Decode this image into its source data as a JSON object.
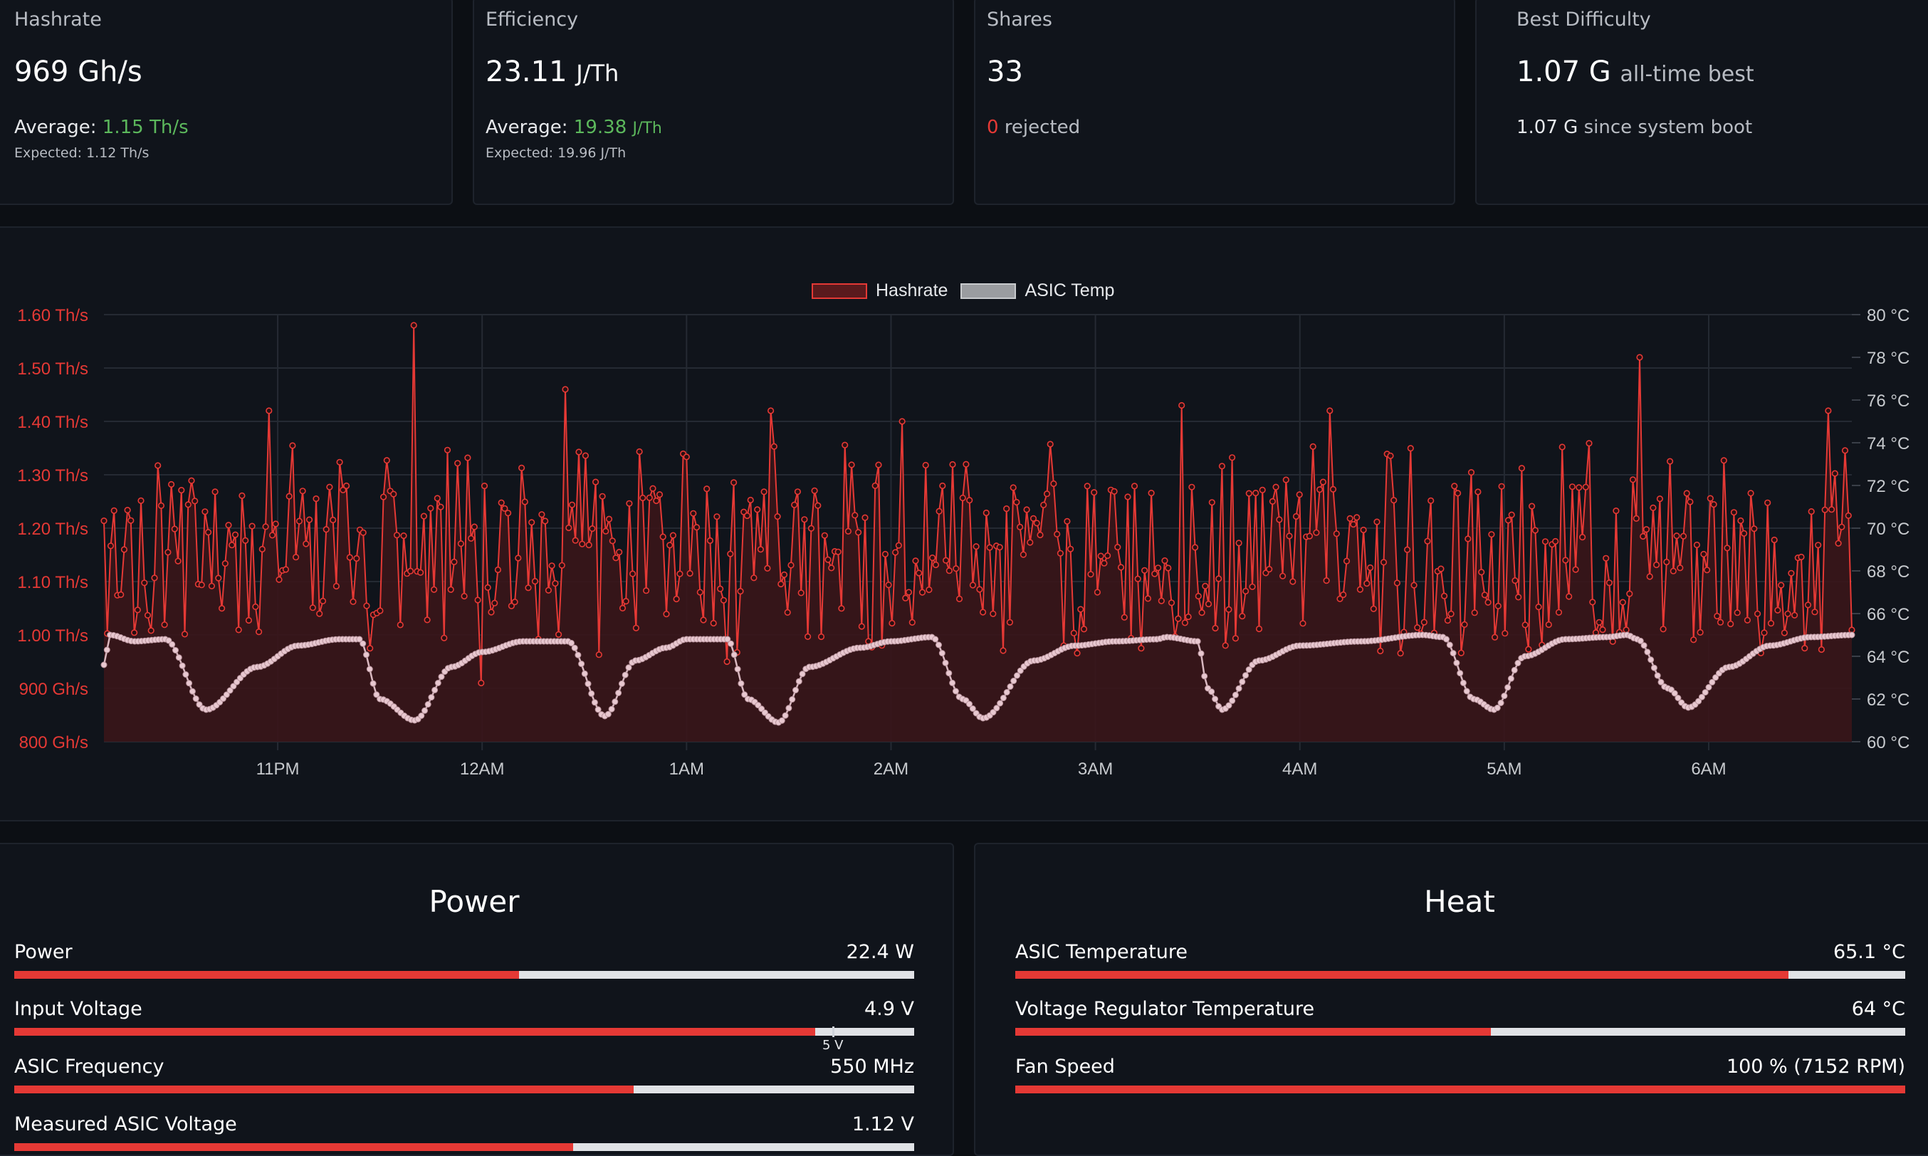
{
  "stats": {
    "hashrate": {
      "title": "Hashrate",
      "value": "969 Gh/s",
      "avg_label": "Average:",
      "avg_value": "1.15 Th/s",
      "expected": "Expected: 1.12 Th/s"
    },
    "efficiency": {
      "title": "Efficiency",
      "value": "23.11",
      "unit": "J/Th",
      "avg_label": "Average:",
      "avg_value": "19.38",
      "avg_unit": "J/Th",
      "expected": "Expected: 19.96 J/Th"
    },
    "shares": {
      "title": "Shares",
      "value": "33",
      "rejected_count": "0",
      "rejected_label": "rejected"
    },
    "best_difficulty": {
      "title": "Best Difficulty",
      "value": "1.07 G",
      "value_suffix": "all-time best",
      "since_boot_value": "1.07 G",
      "since_boot_label": "since system boot"
    }
  },
  "chart_data": {
    "type": "line",
    "legend": [
      "Hashrate",
      "ASIC Temp"
    ],
    "legend_position": "top-center",
    "x_tick_labels": [
      "11PM",
      "12AM",
      "1AM",
      "2AM",
      "3AM",
      "4AM",
      "5AM",
      "6AM"
    ],
    "x_tick_hours": [
      23,
      24,
      25,
      26,
      27,
      28,
      29,
      30
    ],
    "x_range_hours": [
      22.15,
      30.7
    ],
    "y_left": {
      "unit": "Th/s",
      "range": [
        0.8,
        1.6
      ],
      "tick_labels": [
        "800 Gh/s",
        "900 Gh/s",
        "1.00 Th/s",
        "1.10 Th/s",
        "1.20 Th/s",
        "1.30 Th/s",
        "1.40 Th/s",
        "1.50 Th/s",
        "1.60 Th/s"
      ]
    },
    "y_right": {
      "unit": "°C",
      "range": [
        60,
        80
      ],
      "tick_labels": [
        "60 °C",
        "62 °C",
        "64 °C",
        "66 °C",
        "68 °C",
        "70 °C",
        "72 °C",
        "74 °C",
        "76 °C",
        "78 °C",
        "80 °C"
      ]
    },
    "grid": true,
    "series": [
      {
        "name": "Hashrate",
        "y_axis": "left",
        "color": "#e53935",
        "x_range": [
          22.15,
          30.7
        ],
        "point_count": 520,
        "typical_range": [
          1.0,
          1.3
        ],
        "peaks": [
          {
            "x": 22.96,
            "y": 1.42
          },
          {
            "x": 23.67,
            "y": 1.58
          },
          {
            "x": 24.41,
            "y": 1.46
          },
          {
            "x": 25.42,
            "y": 1.42
          },
          {
            "x": 26.06,
            "y": 1.4
          },
          {
            "x": 27.42,
            "y": 1.43
          },
          {
            "x": 28.14,
            "y": 1.42
          },
          {
            "x": 29.67,
            "y": 1.52
          },
          {
            "x": 30.58,
            "y": 1.42
          }
        ],
        "troughs": [
          {
            "x": 24.0,
            "y": 0.91
          },
          {
            "x": 25.2,
            "y": 0.95
          },
          {
            "x": 26.85,
            "y": 0.98
          },
          {
            "x": 28.4,
            "y": 0.97
          }
        ]
      },
      {
        "name": "ASIC Temp",
        "y_axis": "right",
        "color": "#e8c8d0",
        "keypoints": [
          [
            22.15,
            63.6
          ],
          [
            22.18,
            65.0
          ],
          [
            22.3,
            64.7
          ],
          [
            22.45,
            64.8
          ],
          [
            22.65,
            61.5
          ],
          [
            22.9,
            63.5
          ],
          [
            23.1,
            64.5
          ],
          [
            23.3,
            64.8
          ],
          [
            23.4,
            64.8
          ],
          [
            23.5,
            62.0
          ],
          [
            23.67,
            61.0
          ],
          [
            23.85,
            63.5
          ],
          [
            24.0,
            64.2
          ],
          [
            24.2,
            64.7
          ],
          [
            24.42,
            64.7
          ],
          [
            24.6,
            61.2
          ],
          [
            24.75,
            63.8
          ],
          [
            24.9,
            64.4
          ],
          [
            25.0,
            64.8
          ],
          [
            25.2,
            64.8
          ],
          [
            25.3,
            62.0
          ],
          [
            25.45,
            60.9
          ],
          [
            25.6,
            63.5
          ],
          [
            25.85,
            64.4
          ],
          [
            26.0,
            64.7
          ],
          [
            26.2,
            64.9
          ],
          [
            26.35,
            62.0
          ],
          [
            26.45,
            61.1
          ],
          [
            26.7,
            63.8
          ],
          [
            26.9,
            64.5
          ],
          [
            27.1,
            64.7
          ],
          [
            27.3,
            64.8
          ],
          [
            27.3,
            64.8
          ],
          [
            27.35,
            64.9
          ],
          [
            27.5,
            64.7
          ],
          [
            27.55,
            62.5
          ],
          [
            27.62,
            61.5
          ],
          [
            27.8,
            63.8
          ],
          [
            28.0,
            64.5
          ],
          [
            28.3,
            64.7
          ],
          [
            28.6,
            65.0
          ],
          [
            28.7,
            64.9
          ],
          [
            28.85,
            62.0
          ],
          [
            28.95,
            61.5
          ],
          [
            29.1,
            64.0
          ],
          [
            29.3,
            64.8
          ],
          [
            29.5,
            64.9
          ],
          [
            29.6,
            65.0
          ],
          [
            29.65,
            64.8
          ],
          [
            29.8,
            62.5
          ],
          [
            29.9,
            61.6
          ],
          [
            30.1,
            63.5
          ],
          [
            30.3,
            64.5
          ],
          [
            30.5,
            64.9
          ],
          [
            30.7,
            65.0
          ]
        ]
      }
    ]
  },
  "power": {
    "title": "Power",
    "metrics": [
      {
        "label": "Power",
        "value": "22.4 W",
        "fill": 0.561
      },
      {
        "label": "Input Voltage",
        "value": "4.9 V",
        "fill": 0.89,
        "marker_label": "5 V",
        "marker_at": 0.909
      },
      {
        "label": "ASIC Frequency",
        "value": "550 MHz",
        "fill": 0.688
      },
      {
        "label": "Measured ASIC Voltage",
        "value": "1.12 V",
        "fill": 0.621
      }
    ]
  },
  "heat": {
    "title": "Heat",
    "metrics": [
      {
        "label": "ASIC Temperature",
        "value": "65.1 °C",
        "fill": 0.869
      },
      {
        "label": "Voltage Regulator Temperature",
        "value": "64 °C",
        "fill": 0.534
      },
      {
        "label": "Fan Speed",
        "value": "100 % (7152 RPM)",
        "fill": 1.0
      }
    ]
  }
}
